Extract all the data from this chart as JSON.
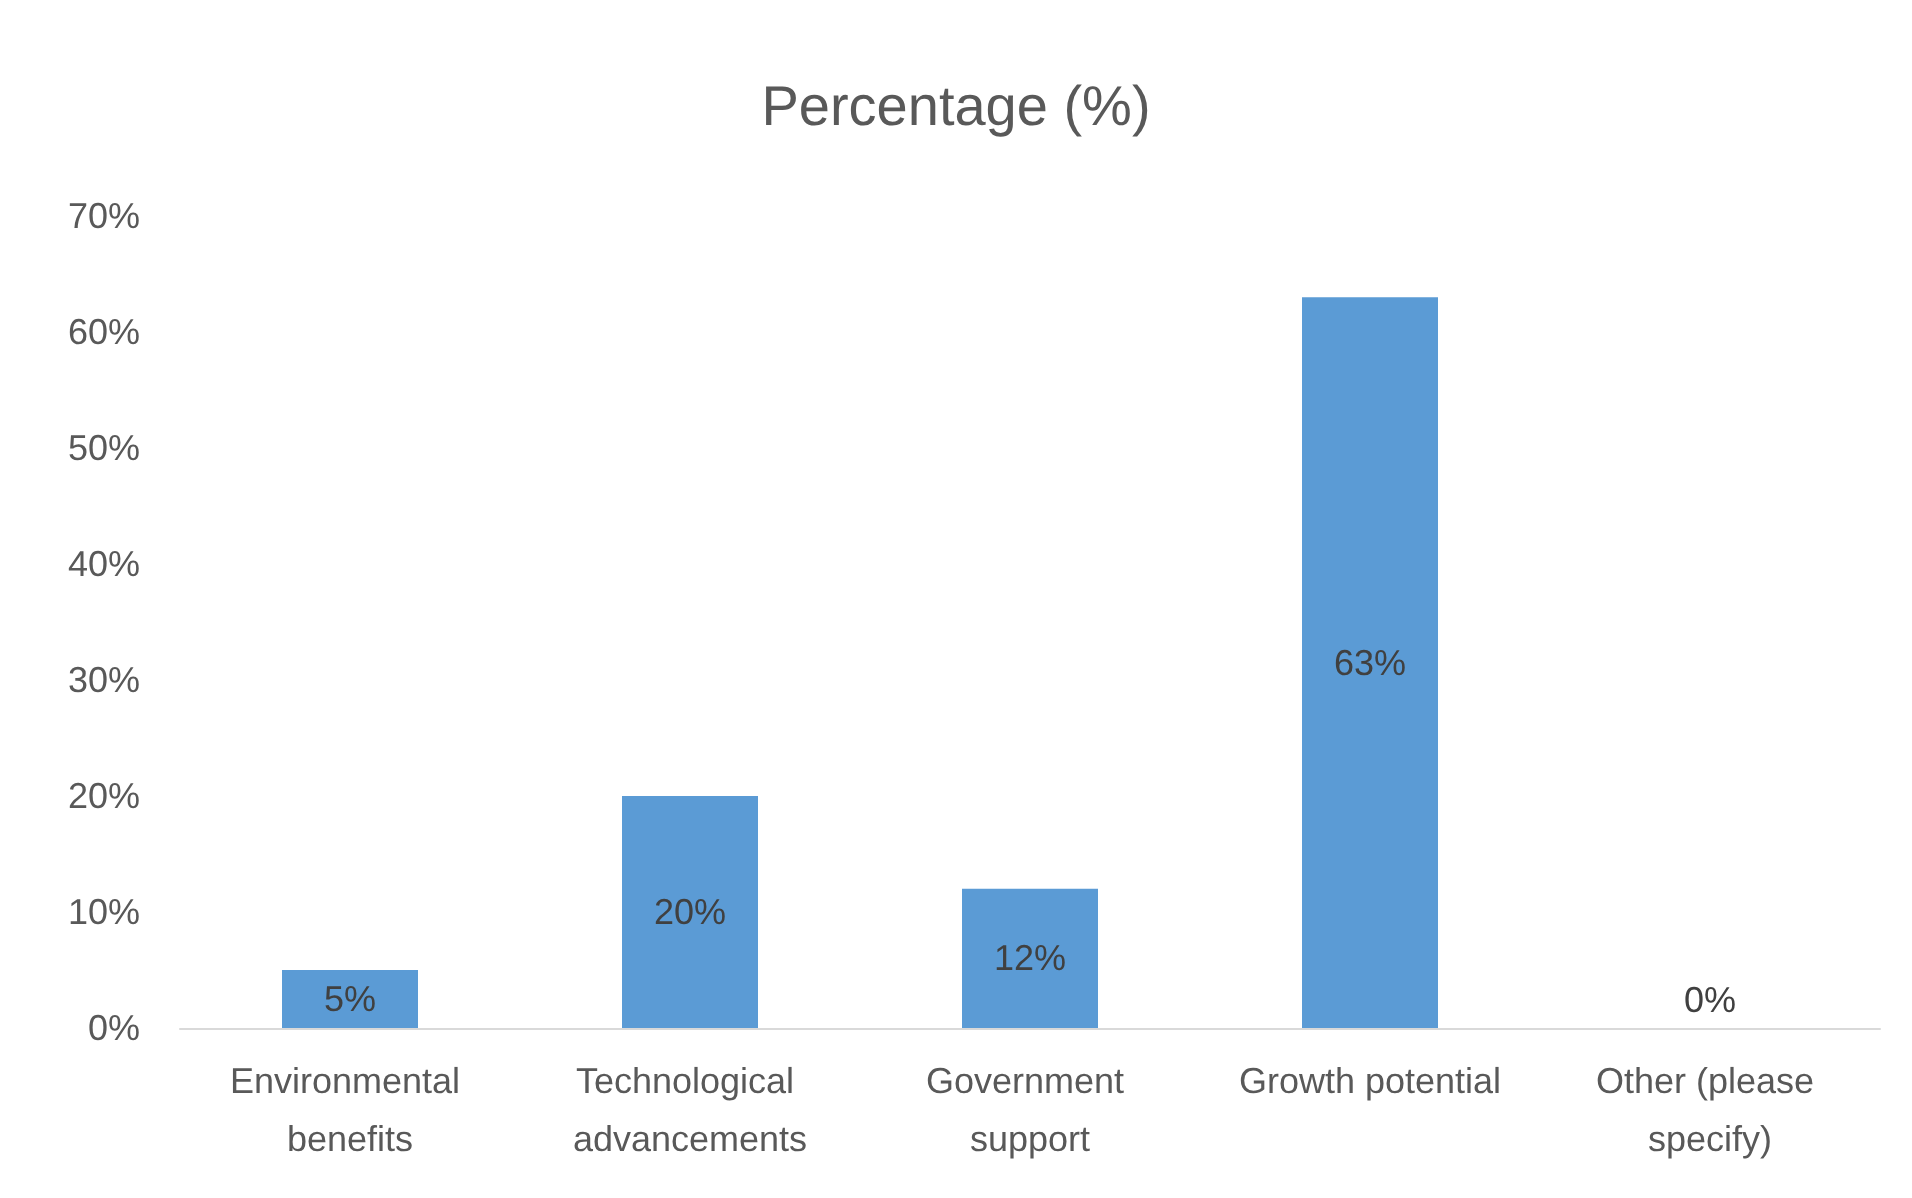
{
  "chart_data": {
    "type": "bar",
    "title": "Percentage (%)",
    "categories": [
      "Environmental benefits",
      "Technological advancements",
      "Government support",
      "Growth potential",
      "Other (please specify)"
    ],
    "values": [
      5,
      20,
      12,
      63,
      0
    ],
    "value_labels": [
      "5%",
      "20%",
      "12%",
      "63%",
      "0%"
    ],
    "color": "#5b9bd5",
    "ylim": [
      0,
      70
    ],
    "yticks": [
      {
        "value": 0,
        "label": "0%"
      },
      {
        "value": 10,
        "label": "10%"
      },
      {
        "value": 20,
        "label": "20%"
      },
      {
        "value": 30,
        "label": "30%"
      },
      {
        "value": 40,
        "label": "40%"
      },
      {
        "value": 50,
        "label": "50%"
      },
      {
        "value": 60,
        "label": "60%"
      },
      {
        "value": 70,
        "label": "70%"
      }
    ],
    "grid": false
  }
}
